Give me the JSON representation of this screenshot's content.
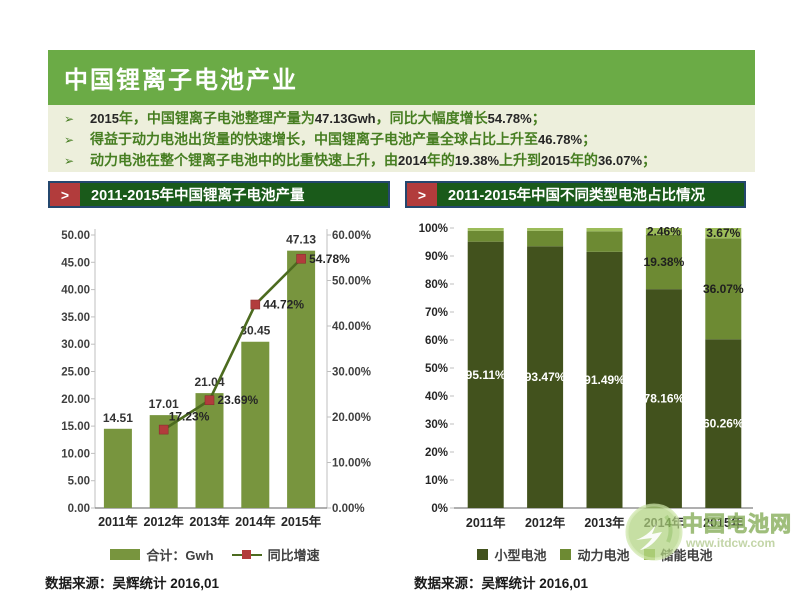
{
  "theme": {
    "green_header": "#6BAB46",
    "panel_bg": "#EDEFDC",
    "title_bar_bg": "#1A5A1A",
    "title_border": "#24476E",
    "arrow_red": "#B23C3C",
    "text_green": "#467E21",
    "number_dark": "#262626"
  },
  "ui": {
    "arrow_glyph": ">",
    "bullet_glyph": "➢"
  },
  "header": {
    "title": "中国锂离子电池产业"
  },
  "bullets": {
    "items": [
      "2015年，中国锂离子电池整理产量为47.13Gwh，同比大幅度增长54.78%；",
      "得益于动力电池出货量的快速增长，中国锂离子电池产量全球占比上升至46.78%；",
      "动力电池在整个锂离子电池中的比重快速上升，由2014年的19.38%上升到2015年的36.07%；"
    ]
  },
  "chart_data": [
    {
      "type": "bar+line",
      "title": "2011-2015年中国锂离子电池产量",
      "categories": [
        "2011年",
        "2012年",
        "2013年",
        "2014年",
        "2015年"
      ],
      "series": [
        {
          "name": "合计：Gwh",
          "type": "bar",
          "color": "#78953E",
          "values": [
            14.51,
            17.01,
            21.04,
            30.45,
            47.13
          ],
          "labels": [
            "14.51",
            "17.01",
            "21.04",
            "30.45",
            "47.13"
          ]
        },
        {
          "name": "同比增速",
          "type": "line",
          "color": "#4C6B1F",
          "marker_color": "#B23C3C",
          "values": [
            null,
            17.23,
            23.69,
            44.72,
            54.78
          ],
          "labels": [
            null,
            "17.23%",
            "23.69%",
            "44.72%",
            "54.78%"
          ]
        }
      ],
      "y_left": {
        "min": 0,
        "max": 50,
        "step": 5,
        "format": "fixed2"
      },
      "y_right": {
        "min": 0,
        "max": 60,
        "step": 10,
        "format": "fixed2pct"
      },
      "grid": false,
      "legend_position": "bottom"
    },
    {
      "type": "stacked-bar-100",
      "title": "2011-2015年中国不同类型电池占比情况",
      "categories": [
        "2011年",
        "2012年",
        "2013年",
        "2014年",
        "2015年"
      ],
      "series": [
        {
          "name": "小型电池",
          "color": "#42521D",
          "label_color": "#FFFFFF",
          "values": [
            95.11,
            93.47,
            91.49,
            78.16,
            60.26
          ],
          "labels": [
            "95.11%",
            "93.47%",
            "91.49%",
            "78.16%",
            "60.26%"
          ]
        },
        {
          "name": "动力电池",
          "color": "#6D8A33",
          "label_color": "#1F1F1F",
          "values": [
            3.89,
            5.53,
            7.31,
            19.38,
            36.07
          ],
          "labels": [
            null,
            null,
            null,
            "19.38%",
            "36.07%"
          ]
        },
        {
          "name": "储能电池",
          "color": "#9CBC59",
          "label_color": "#1F1F1F",
          "values": [
            1.0,
            1.0,
            1.2,
            2.46,
            3.67
          ],
          "labels": [
            null,
            null,
            null,
            "2.46%",
            "3.67%"
          ]
        }
      ],
      "y": {
        "min": 0,
        "max": 100,
        "step": 10,
        "format": "pct0"
      },
      "grid": false,
      "legend_position": "bottom"
    }
  ],
  "sources": {
    "left": "数据来源：吴辉统计  2016,01",
    "right": "数据来源：吴辉统计  2016,01"
  },
  "watermark": {
    "name": "中国电池网",
    "url": "www.itdcw.com"
  }
}
